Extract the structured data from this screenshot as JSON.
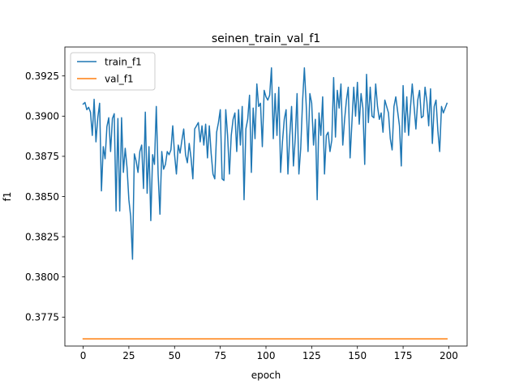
{
  "chart_data": {
    "type": "line",
    "title": "seinen_train_val_f1",
    "xlabel": "epoch",
    "ylabel": "f1",
    "xlim": [
      -10,
      210
    ],
    "ylim": [
      0.3757,
      0.3943
    ],
    "x_ticks": [
      0,
      25,
      50,
      75,
      100,
      125,
      150,
      175,
      200
    ],
    "y_ticks": [
      0.3775,
      0.38,
      0.3825,
      0.385,
      0.3875,
      0.39,
      0.3925
    ],
    "y_tick_labels": [
      "0.3775",
      "0.3800",
      "0.3825",
      "0.3850",
      "0.3875",
      "0.3900",
      "0.3925"
    ],
    "legend_position": "top-left",
    "series": [
      {
        "name": "train_f1",
        "color": "#1f77b4",
        "x_start": 0,
        "x_step": 1,
        "values": [
          0.39075,
          0.39085,
          0.3904,
          0.39055,
          0.39025,
          0.3888,
          0.39105,
          0.3884,
          0.3899,
          0.3908,
          0.38535,
          0.3881,
          0.38735,
          0.38935,
          0.3899,
          0.3878,
          0.38985,
          0.39015,
          0.3841,
          0.38985,
          0.3841,
          0.3899,
          0.3865,
          0.388,
          0.3868,
          0.3848,
          0.38375,
          0.3811,
          0.38765,
          0.3872,
          0.3865,
          0.3878,
          0.3882,
          0.3855,
          0.39025,
          0.3852,
          0.3881,
          0.3835,
          0.3876,
          0.387,
          0.3906,
          0.3864,
          0.3839,
          0.3878,
          0.3867,
          0.387,
          0.3878,
          0.3876,
          0.3879,
          0.3894,
          0.3876,
          0.3864,
          0.3882,
          0.3877,
          0.3885,
          0.3892,
          0.3876,
          0.3871,
          0.3883,
          0.3874,
          0.3861,
          0.3892,
          0.3894,
          0.3896,
          0.3884,
          0.3894,
          0.3882,
          0.3895,
          0.3874,
          0.3894,
          0.3877,
          0.3864,
          0.3861,
          0.389,
          0.3896,
          0.3904,
          0.3861,
          0.386,
          0.3904,
          0.3888,
          0.3864,
          0.3888,
          0.3898,
          0.3902,
          0.3878,
          0.3904,
          0.3882,
          0.3906,
          0.3848,
          0.3892,
          0.3898,
          0.3913,
          0.3865,
          0.3905,
          0.3886,
          0.392,
          0.3906,
          0.3908,
          0.3881,
          0.3916,
          0.3912,
          0.391,
          0.3913,
          0.393,
          0.3886,
          0.3914,
          0.3888,
          0.3918,
          0.3865,
          0.3884,
          0.3898,
          0.3904,
          0.3864,
          0.3888,
          0.3906,
          0.3869,
          0.3886,
          0.3914,
          0.3864,
          0.388,
          0.3909,
          0.393,
          0.3907,
          0.3878,
          0.3914,
          0.3908,
          0.3882,
          0.3898,
          0.3848,
          0.3902,
          0.3888,
          0.3912,
          0.3864,
          0.3888,
          0.389,
          0.3878,
          0.3885,
          0.3924,
          0.3887,
          0.3916,
          0.3905,
          0.392,
          0.3882,
          0.3898,
          0.391,
          0.3918,
          0.3874,
          0.3896,
          0.3918,
          0.39,
          0.3921,
          0.3895,
          0.3914,
          0.3905,
          0.387,
          0.3926,
          0.3896,
          0.3918,
          0.39,
          0.3899,
          0.392,
          0.3906,
          0.3898,
          0.3902,
          0.389,
          0.391,
          0.3906,
          0.3902,
          0.3886,
          0.3879,
          0.3906,
          0.3912,
          0.3903,
          0.3894,
          0.3869,
          0.3919,
          0.389,
          0.3912,
          0.3888,
          0.3905,
          0.392,
          0.3906,
          0.3892,
          0.391,
          0.3916,
          0.3899,
          0.39,
          0.3918,
          0.3909,
          0.3894,
          0.3917,
          0.3883,
          0.3906,
          0.391,
          0.3891,
          0.3878,
          0.3906,
          0.3902,
          0.3905,
          0.3908
        ]
      },
      {
        "name": "val_f1",
        "color": "#ff7f0e",
        "x": [
          0,
          199
        ],
        "values": [
          0.37615,
          0.37615
        ]
      }
    ]
  }
}
